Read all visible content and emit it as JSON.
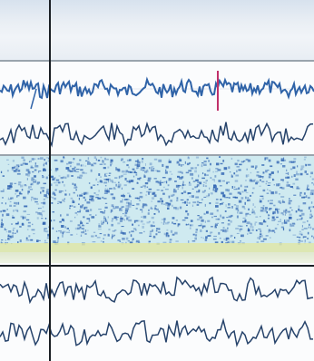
{
  "window": {
    "title": ""
  },
  "colors": {
    "trace": "#2f63a8",
    "trace_dark": "#26436b",
    "marker": "#c0306a",
    "cursor": "#1a1f24",
    "spectro_low": "#cfeaf0",
    "spectro_high": "#2a5fb0",
    "band_yellow": "#dfe6a8"
  },
  "icons": {
    "cursor": "vertical-cursor-line",
    "marker": "event-marker"
  },
  "timebar": {
    "ticks": [
      "",
      "",
      "",
      "",
      ""
    ]
  }
}
